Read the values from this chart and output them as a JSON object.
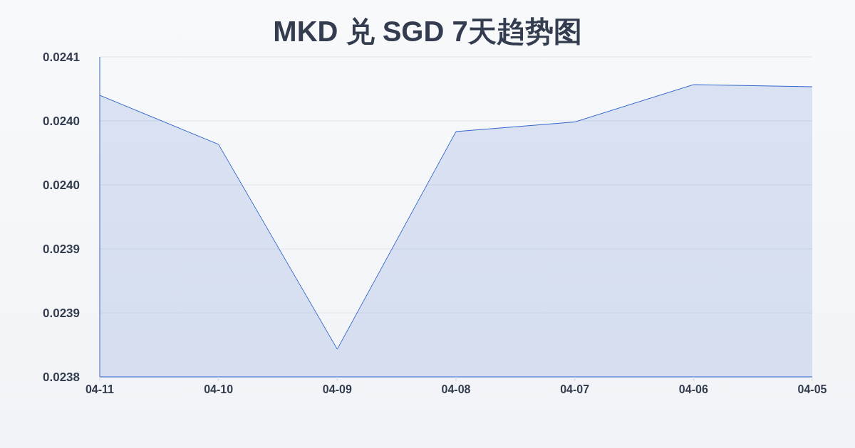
{
  "chart_data": {
    "type": "area",
    "title": "MKD 兑 SGD 7天趋势图",
    "categories": [
      "04-11",
      "04-10",
      "04-09",
      "04-08",
      "04-07",
      "04-06",
      "04-05"
    ],
    "values": [
      0.024064,
      0.024018,
      0.023826,
      0.02403,
      0.024039,
      0.024074,
      0.024072
    ],
    "color": "#3366cc",
    "ylim": [
      0.0238,
      0.0241
    ],
    "yticks": [
      0.0238,
      {
        "value": 0.02386,
        "label": "0.0239"
      },
      {
        "value": 0.02392,
        "label": "0.0239"
      },
      {
        "value": 0.02398,
        "label": "0.0240"
      },
      {
        "value": 0.02404,
        "label": "0.0240"
      },
      0.0241
    ],
    "grid": "y"
  }
}
